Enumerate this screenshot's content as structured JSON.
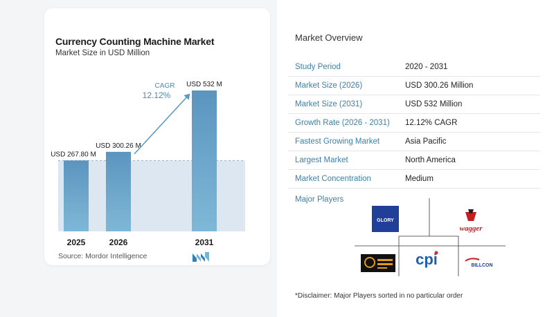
{
  "chart": {
    "title": "Currency Counting Machine Market",
    "subtitle": "Market Size in USD Million",
    "cagr_label": "CAGR",
    "cagr_value": "12.12%",
    "source": "Source:  Mordor Intelligence",
    "colors": {
      "bar": "#5b9ac3",
      "bar_light": "#dde7f2",
      "arrow": "#5b9ac3",
      "cagr_text": "#4a8ab5"
    }
  },
  "chart_data": {
    "type": "bar",
    "categories": [
      "2025",
      "2026",
      "2031"
    ],
    "values": [
      267.8,
      300.26,
      532
    ],
    "data_labels": [
      "USD 267.80 M",
      "USD 300.26 M",
      "USD 532 M"
    ],
    "title": "Currency Counting Machine Market",
    "subtitle": "Market Size in USD Million",
    "xlabel": "",
    "ylabel": "",
    "ylim": [
      0,
      532
    ],
    "grid": false,
    "legend": "none",
    "annotation": "CAGR 12.12%"
  },
  "overview": {
    "title": "Market Overview",
    "rows": [
      {
        "label": "Study Period",
        "value": "2020 - 2031"
      },
      {
        "label": "Market Size (2026)",
        "value": "USD 300.26 Million"
      },
      {
        "label": "Market Size (2031)",
        "value": "USD 532 Million"
      },
      {
        "label": "Growth Rate (2026 - 2031)",
        "value": "12.12% CAGR"
      },
      {
        "label": "Fastest Growing Market",
        "value": "Asia Pacific"
      },
      {
        "label": "Largest Market",
        "value": "North America"
      },
      {
        "label": "Market Concentration",
        "value": "Medium"
      }
    ]
  },
  "players": {
    "title": "Major Players",
    "logos": [
      "GLORY",
      "wagger",
      "cpi",
      "BILLCON"
    ]
  },
  "disclaimer": "*Disclaimer: Major Players sorted in no particular order"
}
